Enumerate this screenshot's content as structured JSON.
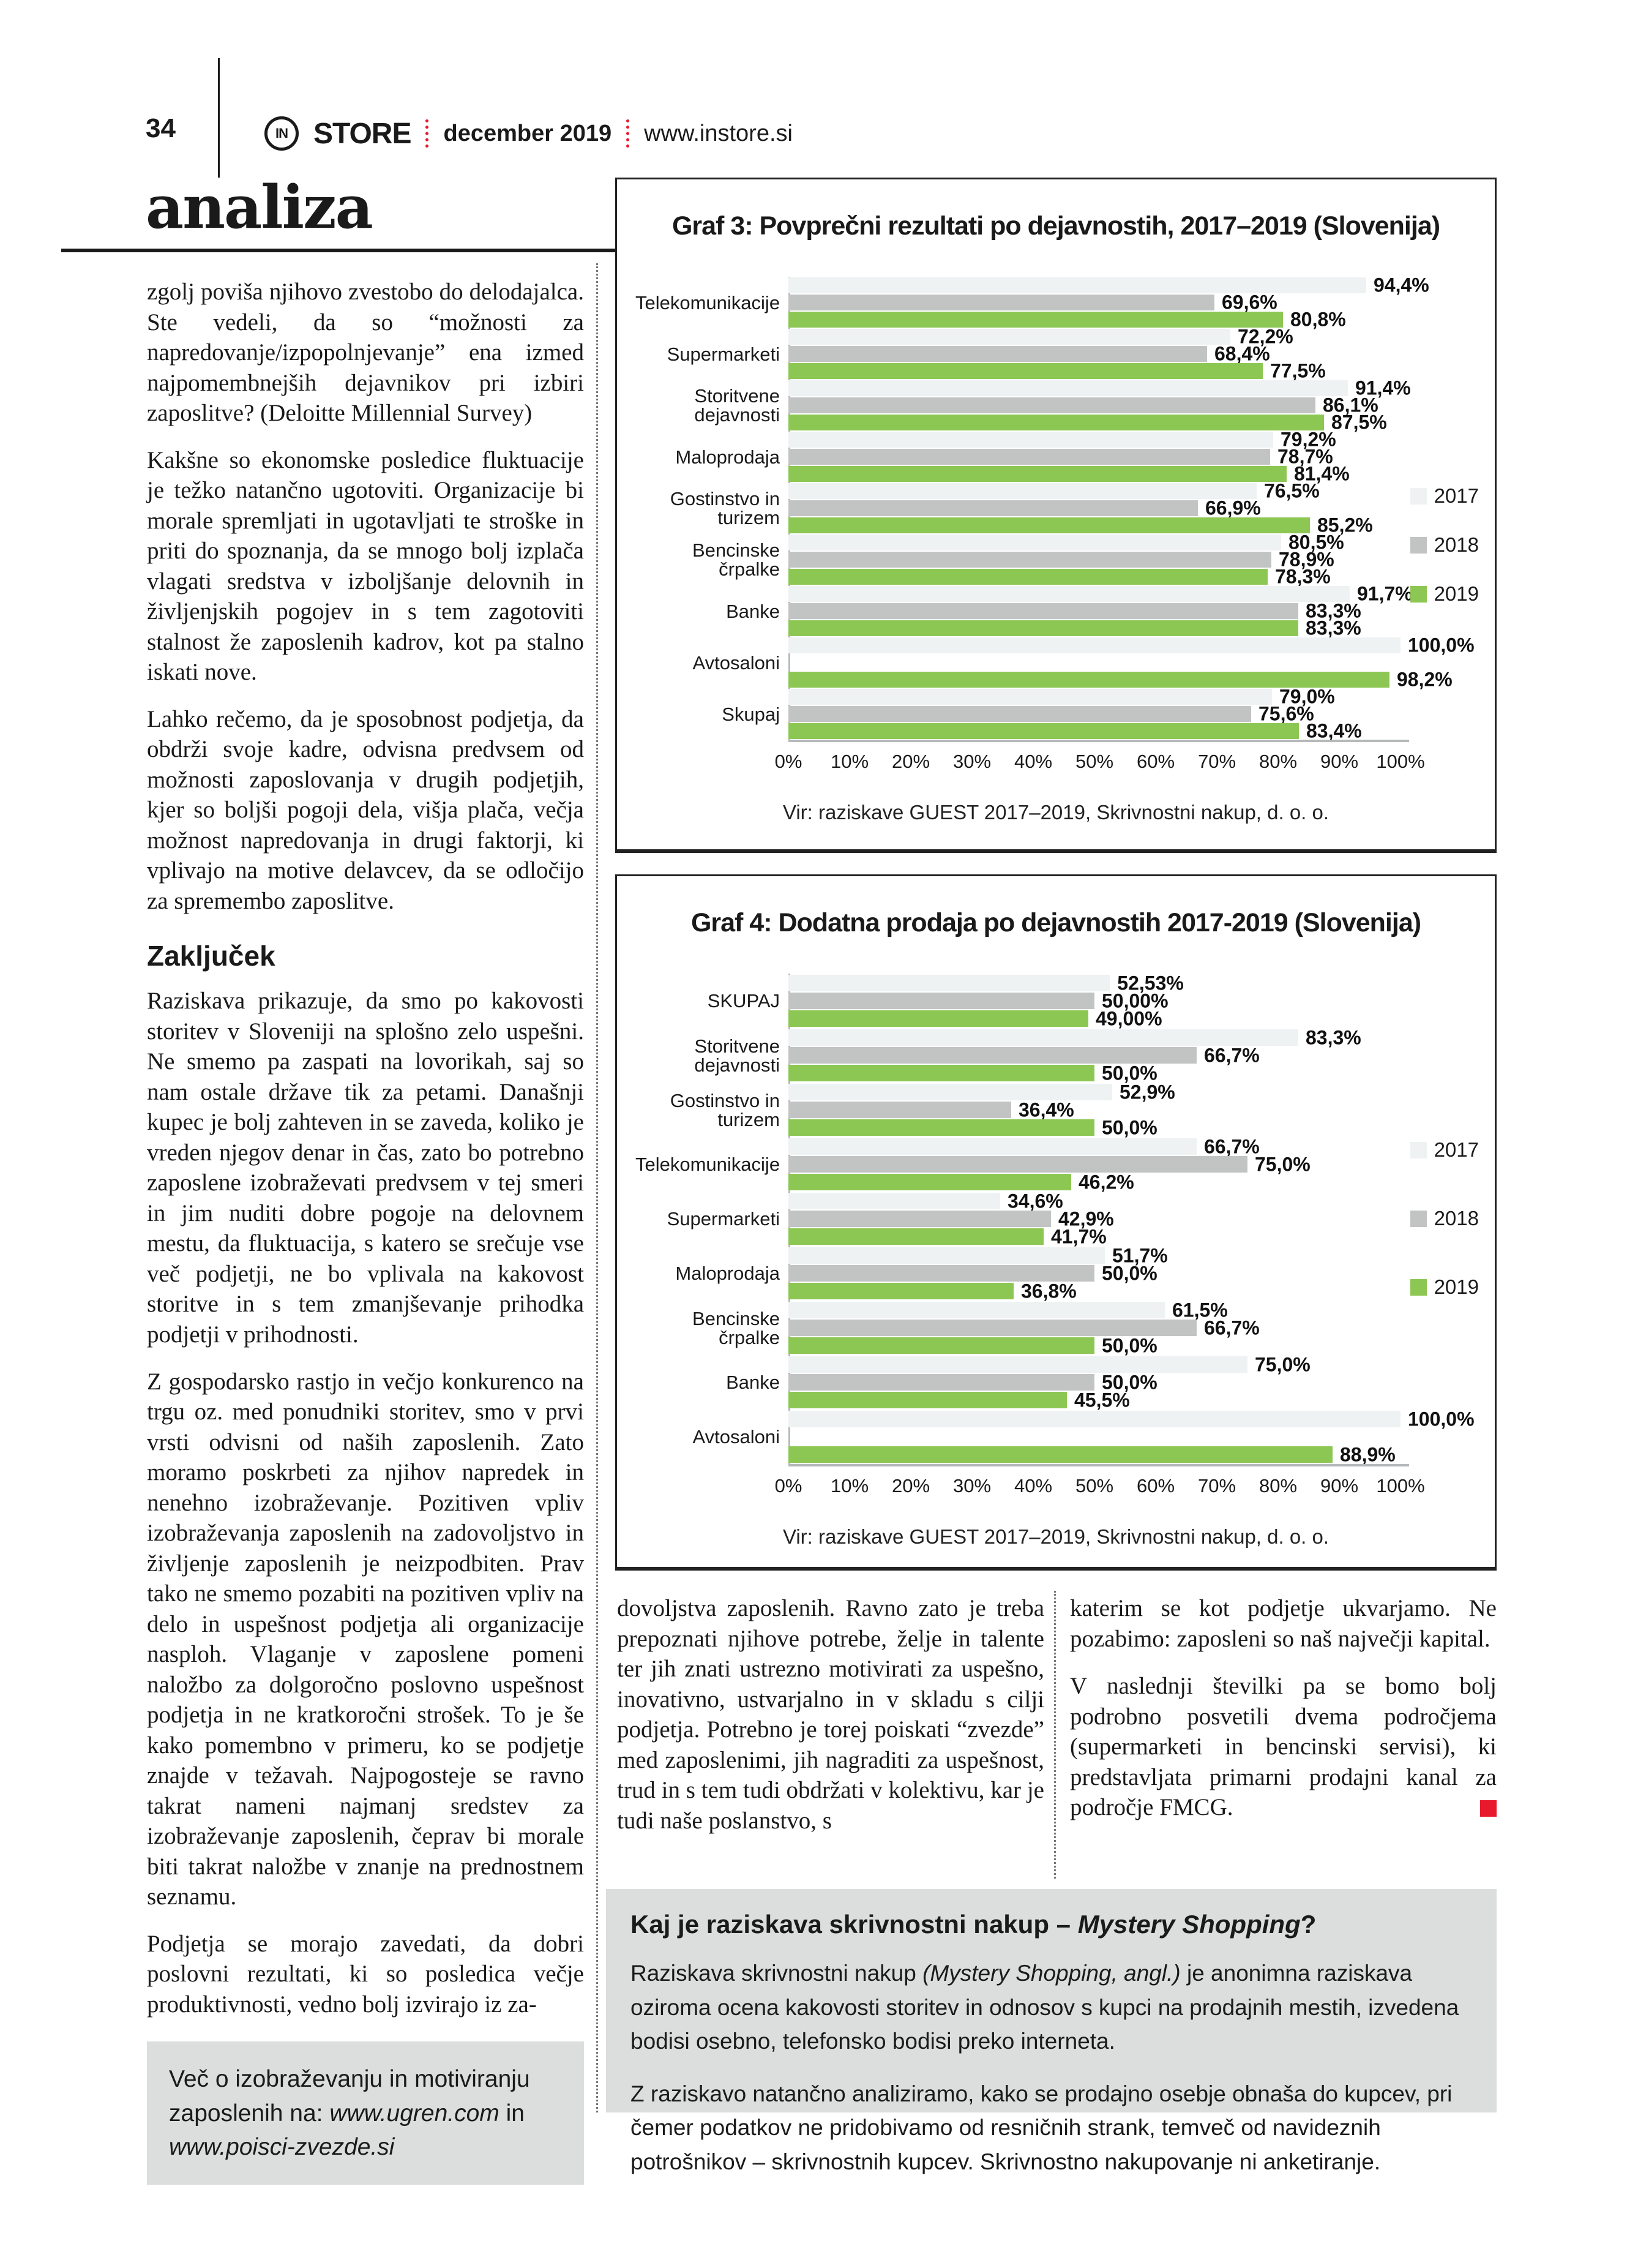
{
  "header": {
    "page_number": "34",
    "logo_circle_text": "IN",
    "logo_text": "STORE",
    "issue_date": "december 2019",
    "website": "www.instore.si",
    "section_title": "analiza",
    "divider_color": "#e8192c"
  },
  "article": {
    "intro_paragraphs": [
      "zgolj poviša njihovo zvestobo do delodajalca. Ste vedeli, da so “možnosti za napredovanje/izpopolnjevanje” ena izmed najpomembnejših dejavnikov pri izbiri zaposlitve? (Deloitte Millennial Survey)",
      "Kakšne so ekonomske posledice fluktuacije je težko natančno ugotoviti. Organizacije bi morale spremljati in ugotavljati te stroške in priti do spoznanja, da se mnogo bolj izplača vlagati sredstva v izboljšanje delovnih in življenjskih pogojev in s tem zagotoviti stalnost že zaposlenih kadrov, kot pa stalno iskati nove.",
      "Lahko rečemo, da je sposobnost podjetja, da obdrži svoje kadre, odvisna predvsem od možnosti zaposlovanja v drugih podjetjih, kjer so boljši pogoji dela, višja plača, večja možnost napredovanja in drugi faktorji, ki vplivajo na motive delavcev, da se odločijo za spremembo zaposlitve."
    ],
    "conclusion_heading": "Zaključek",
    "conclusion_paragraphs": [
      "Raziskava prikazuje, da smo po kakovosti storitev v Sloveniji na splošno zelo uspešni. Ne smemo pa zaspati na lovorikah, saj so nam ostale države tik za petami. Današnji kupec je bolj zahteven in se zaveda, koliko je vreden njegov denar in čas, zato bo potrebno zaposlene izobraževati predvsem v tej smeri in jim nuditi dobre pogoje na delovnem mestu, da fluktuacija, s katero se srečuje vse več podjetji, ne bo vplivala na kakovost storitve in s tem zmanjševanje prihodka podjetji v prihodnosti.",
      "Z gospodarsko rastjo in večjo konkurenco na trgu oz. med ponudniki storitev, smo v prvi vrsti odvisni od naših zaposlenih. Zato moramo poskrbeti za njihov napredek in nenehno izobraževanje. Pozitiven vpliv izobraževanja zaposlenih na zadovoljstvo in življenje zaposlenih je neizpodbiten. Prav tako ne smemo pozabiti na pozitiven vpliv na delo in uspešnost podjetja ali organizacije nasploh. Vlaganje v zaposlene pomeni naložbo za dolgoročno poslovno uspešnost podjetja in ne kratkoročni strošek. To je še kako pomembno v primeru, ko se podjetje znajde v težavah. Najpogosteje se ravno takrat nameni najmanj sredstev za izobraževanje zaposlenih, čeprav bi morale biti takrat naložbe v znanje na prednostnem seznamu.",
      "Podjetja se morajo zavedati, da dobri poslovni rezultati, ki so posledica večje produktivnosti, vedno bolj izvirajo iz za-"
    ],
    "info_box_runs": [
      {
        "t": "Več o izobraževanju in motiviranju zaposlenih na: "
      },
      {
        "t": "www.ugren.com",
        "i": true
      },
      {
        "t": " in ",
        "i": false
      },
      {
        "t": "www.poisci-zvezde.si",
        "i": true
      }
    ],
    "continuation_col1": [
      "dovoljstva zaposlenih. Ravno zato je treba prepoznati njihove potrebe, želje in talente ter jih znati ustrezno motivirati za uspešno, inovativno, ustvarjalno in v skladu s cilji podjetja. Potrebno je torej poiskati “zvezde” med zaposlenimi, jih nagraditi za uspešnost, trud in s tem tudi obdržati v kolektivu, kar je tudi naše poslanstvo, s"
    ],
    "continuation_col2": [
      "katerim se kot podjetje ukvarjamo. Ne pozabimo: zaposleni so naš največji kapital.",
      "V naslednji številki pa se bomo bolj podrobno posvetili dvema področjema (supermarketi in bencinski servisi), ki predstavljata primarni prodajni kanal za področje FMCG."
    ],
    "end_mark_color": "#e8192c"
  },
  "chart_data": [
    {
      "type": "bar",
      "orientation": "horizontal",
      "title": "Graf 3: Povprečni rezultati po dejavnostih, 2017–2019 (Slovenija)",
      "categories": [
        "Telekomunikacije",
        "Supermarketi",
        "Storitvene dejavnosti",
        "Maloprodaja",
        "Gostinstvo in turizem",
        "Bencinske črpalke",
        "Banke",
        "Avtosaloni",
        "Skupaj"
      ],
      "series": [
        {
          "name": "2017",
          "color": "#eef2f3",
          "values": [
            94.4,
            72.2,
            91.4,
            79.2,
            76.5,
            80.5,
            91.7,
            100.0,
            79.0
          ],
          "labels": [
            "94,4%",
            "72,2%",
            "91,4%",
            "79,2%",
            "76,5%",
            "80,5%",
            "91,7%",
            "100,0%",
            "79,0%"
          ]
        },
        {
          "name": "2018",
          "color": "#c2c4c3",
          "values": [
            69.6,
            68.4,
            86.1,
            78.7,
            66.9,
            78.9,
            83.3,
            null,
            75.6
          ],
          "labels": [
            "69,6%",
            "68,4%",
            "86,1%",
            "78,7%",
            "66,9%",
            "78,9%",
            "83,3%",
            null,
            "75,6%"
          ]
        },
        {
          "name": "2019",
          "color": "#8dc753",
          "values": [
            80.8,
            77.5,
            87.5,
            81.4,
            85.2,
            78.3,
            83.3,
            98.2,
            83.4
          ],
          "labels": [
            "80,8%",
            "77,5%",
            "87,5%",
            "81,4%",
            "85,2%",
            "78,3%",
            "83,3%",
            "98,2%",
            "83,4%"
          ]
        }
      ],
      "xlim": [
        0,
        100
      ],
      "x_ticks": [
        "0%",
        "10%",
        "20%",
        "30%",
        "40%",
        "50%",
        "60%",
        "70%",
        "80%",
        "90%",
        "100%"
      ],
      "legend": [
        "2017",
        "2018",
        "2019"
      ],
      "legend_position": "right",
      "grid": false,
      "source": "Vir: raziskave GUEST 2017–2019, Skrivnostni nakup, d. o. o."
    },
    {
      "type": "bar",
      "orientation": "horizontal",
      "title": "Graf 4: Dodatna prodaja po dejavnostih 2017-2019 (Slovenija)",
      "categories": [
        "SKUPAJ",
        "Storitvene dejavnosti",
        "Gostinstvo in turizem",
        "Telekomunikacije",
        "Supermarketi",
        "Maloprodaja",
        "Bencinske črpalke",
        "Banke",
        "Avtosaloni"
      ],
      "series": [
        {
          "name": "2017",
          "color": "#eef2f3",
          "values": [
            52.53,
            83.3,
            52.9,
            66.7,
            34.6,
            51.7,
            61.5,
            75.0,
            100.0
          ],
          "labels": [
            "52,53%",
            "83,3%",
            "52,9%",
            "66,7%",
            "34,6%",
            "51,7%",
            "61,5%",
            "75,0%",
            "100,0%"
          ]
        },
        {
          "name": "2018",
          "color": "#c2c4c3",
          "values": [
            50.0,
            66.7,
            36.4,
            75.0,
            42.9,
            50.0,
            66.7,
            50.0,
            null
          ],
          "labels": [
            "50,00%",
            "66,7%",
            "36,4%",
            "75,0%",
            "42,9%",
            "50,0%",
            "66,7%",
            "50,0%",
            null
          ]
        },
        {
          "name": "2019",
          "color": "#8dc753",
          "values": [
            49.0,
            50.0,
            50.0,
            46.2,
            41.7,
            36.8,
            50.0,
            45.5,
            88.9
          ],
          "labels": [
            "49,00%",
            "50,0%",
            "50,0%",
            "46,2%",
            "41,7%",
            "36,8%",
            "50,0%",
            "45,5%",
            "88,9%"
          ]
        }
      ],
      "xlim": [
        0,
        100
      ],
      "x_ticks": [
        "0%",
        "10%",
        "20%",
        "30%",
        "40%",
        "50%",
        "60%",
        "70%",
        "80%",
        "90%",
        "100%"
      ],
      "legend": [
        "2017",
        "2018",
        "2019"
      ],
      "legend_position": "right",
      "grid": false,
      "source": "Vir: raziskave GUEST 2017–2019, Skrivnostni nakup, d. o. o."
    }
  ],
  "mystery_box": {
    "title_runs": [
      {
        "t": "Kaj je raziskava skrivnostni nakup – "
      },
      {
        "t": "Mystery Shopping",
        "i": true
      },
      {
        "t": "?"
      }
    ],
    "paragraph1_runs": [
      {
        "t": "Raziskava skrivnostni nakup "
      },
      {
        "t": "(Mystery Shopping, angl.)",
        "i": true
      },
      {
        "t": " je anonimna raziskava oziroma ocena kakovosti storitev in odnosov s kupci na prodajnih mestih, izvedena bodisi osebno, telefonsko bodisi preko interneta."
      }
    ],
    "paragraph2": "Z raziskavo natančno analiziramo, kako se prodajno osebje obnaša do kupcev, pri čemer podatkov ne pridobivamo od resničnih strank, temveč od navideznih potrošnikov – skrivnostnih kupcev. Skrivnostno nakupovanje ni anketiranje."
  }
}
